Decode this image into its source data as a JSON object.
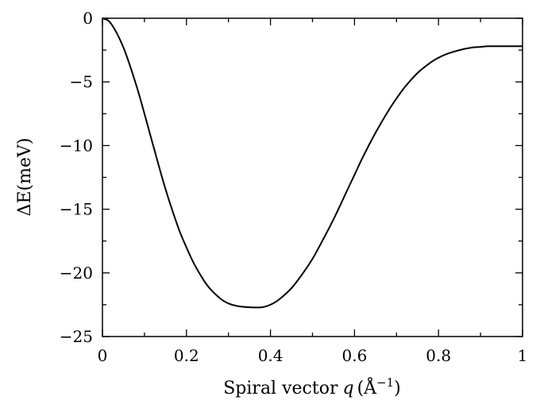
{
  "chart_data": {
    "type": "line",
    "title": "",
    "xlabel": "Spiral vector",
    "xlabel_symbol": "q",
    "xlabel_unit_open": "(",
    "xlabel_unit_base": "Å",
    "xlabel_unit_exp": "−1",
    "xlabel_unit_close": ")",
    "ylabel": "ΔE(meV)",
    "xlim": [
      0,
      1
    ],
    "ylim": [
      -25,
      0
    ],
    "xticks": [
      0,
      0.2,
      0.4,
      0.6,
      0.8,
      1
    ],
    "xtick_labels": [
      "0",
      "0.2",
      "0.4",
      "0.6",
      "0.8",
      "1"
    ],
    "yticks": [
      0,
      -5,
      -10,
      -15,
      -20,
      -25
    ],
    "ytick_labels": [
      "0",
      "−5",
      "−10",
      "−15",
      "−20",
      "−25"
    ],
    "grid": false,
    "line_color": "#000000",
    "series": [
      {
        "x": [
          0,
          0.02,
          0.05,
          0.08,
          0.1,
          0.12,
          0.15,
          0.18,
          0.2,
          0.22,
          0.25,
          0.28,
          0.3,
          0.32,
          0.35,
          0.38,
          0.4,
          0.42,
          0.45,
          0.48,
          0.5,
          0.52,
          0.55,
          0.58,
          0.6,
          0.62,
          0.65,
          0.68,
          0.7,
          0.72,
          0.75,
          0.78,
          0.8,
          0.82,
          0.85,
          0.88,
          0.9,
          0.92,
          0.95,
          0.98,
          1.0
        ],
        "y": [
          0,
          -0.4,
          -2.3,
          -5.2,
          -7.5,
          -9.9,
          -13.4,
          -16.4,
          -18.0,
          -19.4,
          -21.0,
          -22.0,
          -22.4,
          -22.6,
          -22.7,
          -22.7,
          -22.5,
          -22.1,
          -21.2,
          -19.9,
          -18.9,
          -17.7,
          -15.8,
          -13.7,
          -12.3,
          -10.9,
          -9.0,
          -7.3,
          -6.3,
          -5.4,
          -4.3,
          -3.5,
          -3.1,
          -2.8,
          -2.5,
          -2.3,
          -2.25,
          -2.2,
          -2.2,
          -2.2,
          -2.2
        ]
      }
    ]
  }
}
